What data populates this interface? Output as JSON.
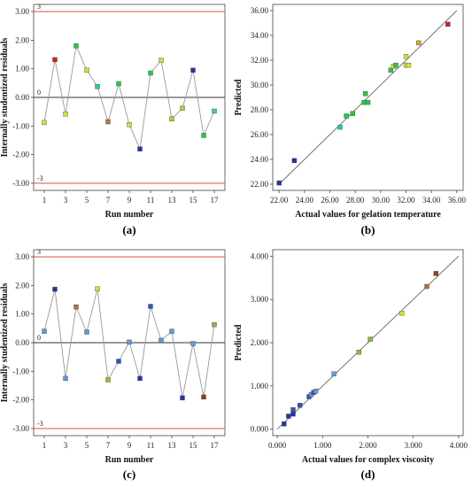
{
  "chart_data": [
    {
      "type": "line",
      "label": "(a)",
      "xlabel": "Run number",
      "ylabel": "Internally studentized residuals",
      "xlim": [
        0,
        18
      ],
      "ylim": [
        -3.25,
        3.25
      ],
      "xticks": [
        "1",
        "3",
        "5",
        "7",
        "9",
        "11",
        "13",
        "15",
        "17"
      ],
      "yticks": [
        "-3.00",
        "-2.00",
        "-1.00",
        "0.00",
        "1.00",
        "2.00",
        "3.00"
      ],
      "reference_lines": [
        {
          "label": "3",
          "y": 3,
          "color": "#e06060"
        },
        {
          "label": "0",
          "y": 0,
          "color": "#333333"
        },
        {
          "label": "-3",
          "y": -3,
          "color": "#e06060"
        }
      ],
      "x": [
        1,
        2,
        3,
        4,
        5,
        6,
        7,
        8,
        9,
        10,
        11,
        12,
        13,
        14,
        15,
        16,
        17
      ],
      "y": [
        -0.88,
        1.32,
        -0.58,
        1.8,
        0.95,
        0.38,
        -0.85,
        0.48,
        -0.95,
        -1.8,
        0.85,
        1.3,
        -0.75,
        -0.38,
        0.95,
        -1.33,
        -0.48
      ],
      "point_colors": [
        "#dddd33",
        "#cc2222",
        "#dddd33",
        "#22cc44",
        "#dddd33",
        "#22ccaa",
        "#bb7733",
        "#22cc44",
        "#dddd33",
        "#2233aa",
        "#22cc44",
        "#dddd33",
        "#bbcc33",
        "#bbcc33",
        "#2233aa",
        "#22cc44",
        "#33ccaa"
      ]
    },
    {
      "type": "scatter",
      "label": "(b)",
      "xlabel": "Actual values for gelation temperature",
      "ylabel": "Predicted",
      "xlim": [
        21.5,
        36.5
      ],
      "ylim": [
        21.5,
        36.5
      ],
      "xticks": [
        "22.00",
        "24.00",
        "26.00",
        "28.00",
        "30.00",
        "32.00",
        "34.00",
        "36.00"
      ],
      "yticks": [
        "22.00",
        "24.00",
        "26.00",
        "28.00",
        "30.00",
        "32.00",
        "34.00",
        "36.00"
      ],
      "diagonal": [
        22.0,
        36.0
      ],
      "x": [
        22.0,
        23.2,
        26.8,
        27.3,
        27.8,
        28.7,
        28.8,
        29.0,
        30.8,
        31.0,
        31.2,
        32.0,
        32.2,
        32.0,
        33.0,
        35.3
      ],
      "y": [
        22.1,
        23.9,
        26.6,
        27.5,
        27.7,
        28.6,
        29.3,
        28.6,
        31.2,
        31.5,
        31.6,
        31.6,
        31.6,
        32.3,
        33.4,
        34.9
      ],
      "point_colors": [
        "#2233aa",
        "#2233aa",
        "#22ccaa",
        "#22cc44",
        "#22cc44",
        "#22cc44",
        "#22cc44",
        "#22cc44",
        "#22cc44",
        "#dddd33",
        "#22cc44",
        "#dddd33",
        "#dddd33",
        "#dddd33",
        "#ccaa33",
        "#cc2222"
      ]
    },
    {
      "type": "line",
      "label": "(c)",
      "xlabel": "Run number",
      "ylabel": "Internally studentized residuals",
      "xlim": [
        0,
        18
      ],
      "ylim": [
        -3.25,
        3.25
      ],
      "xticks": [
        "1",
        "3",
        "5",
        "7",
        "9",
        "11",
        "13",
        "15",
        "17"
      ],
      "yticks": [
        "-3.00",
        "-2.00",
        "-1.00",
        "0.00",
        "1.00",
        "2.00",
        "3.00"
      ],
      "reference_lines": [
        {
          "label": "3",
          "y": 3,
          "color": "#e06060"
        },
        {
          "label": "0",
          "y": 0,
          "color": "#333333"
        },
        {
          "label": "-3",
          "y": -3,
          "color": "#e06060"
        }
      ],
      "x": [
        1,
        2,
        3,
        4,
        5,
        6,
        7,
        8,
        9,
        10,
        11,
        12,
        13,
        14,
        15,
        16,
        17
      ],
      "y": [
        0.4,
        1.87,
        -1.25,
        1.25,
        0.37,
        1.88,
        -1.3,
        -0.65,
        0.02,
        -1.25,
        1.27,
        0.08,
        0.4,
        -1.93,
        -0.03,
        -1.9,
        0.63
      ],
      "point_colors": [
        "#6699dd",
        "#2233aa",
        "#6699dd",
        "#aa7733",
        "#6699dd",
        "#dddd33",
        "#99bb33",
        "#3355bb",
        "#6699dd",
        "#2233aa",
        "#3355bb",
        "#6699dd",
        "#6699dd",
        "#2233aa",
        "#6699dd",
        "#993322",
        "#88bb44"
      ]
    },
    {
      "type": "scatter",
      "label": "(d)",
      "xlabel": "Actual values for complex viscosity",
      "ylabel": "Predicted",
      "xlim": [
        -0.1,
        4.1
      ],
      "ylim": [
        -0.15,
        4.15
      ],
      "xticks": [
        "0.000",
        "1.000",
        "2.000",
        "3.000",
        "4.000"
      ],
      "yticks": [
        "0.000",
        "1.000",
        "2.000",
        "3.000",
        "4.000"
      ],
      "diagonal": [
        0.0,
        4.0
      ],
      "x": [
        0.15,
        0.25,
        0.35,
        0.35,
        0.5,
        0.7,
        0.75,
        0.8,
        0.85,
        1.25,
        1.8,
        2.05,
        2.75,
        3.3,
        3.5
      ],
      "y": [
        0.12,
        0.3,
        0.35,
        0.45,
        0.55,
        0.75,
        0.8,
        0.85,
        0.88,
        1.28,
        1.78,
        2.08,
        2.68,
        3.3,
        3.6
      ],
      "point_colors": [
        "#2233aa",
        "#2233aa",
        "#2233aa",
        "#3355bb",
        "#3355bb",
        "#3355bb",
        "#6699dd",
        "#3355bb",
        "#6699dd",
        "#6699dd",
        "#88bb44",
        "#88bb44",
        "#dddd33",
        "#aa7733",
        "#884422"
      ]
    }
  ]
}
